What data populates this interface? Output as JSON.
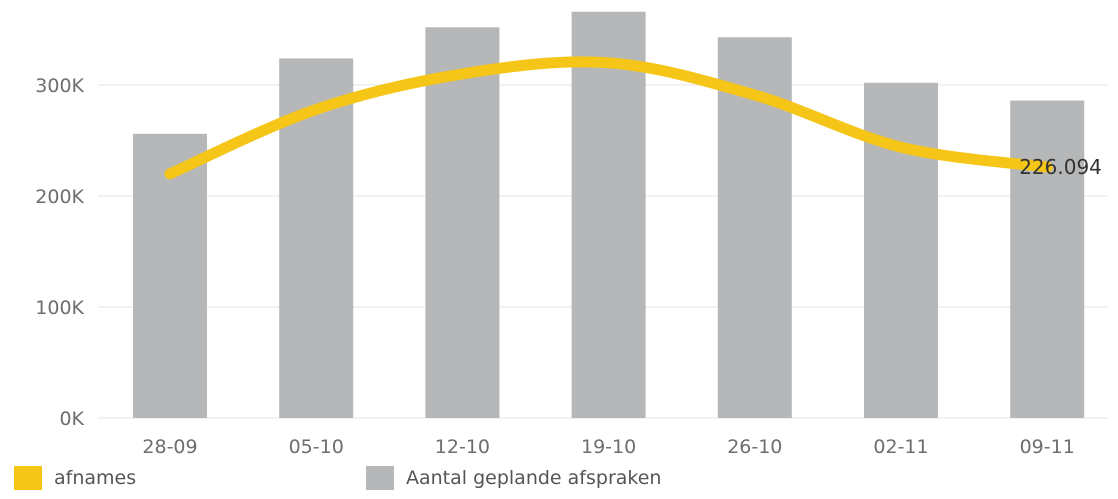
{
  "chart_data": {
    "type": "bar",
    "categories": [
      "28-09",
      "05-10",
      "12-10",
      "19-10",
      "26-10",
      "02-11",
      "09-11"
    ],
    "y_ticks": [
      "0K",
      "100K",
      "200K",
      "300K"
    ],
    "ylim": [
      0,
      370000
    ],
    "grid": true,
    "legend_position": "bottom-left",
    "series": [
      {
        "name": "Aantal geplande afspraken",
        "type": "bar",
        "color": "#b5b7b8",
        "values": [
          256000,
          324000,
          352000,
          366000,
          343000,
          302000,
          286000
        ]
      },
      {
        "name": "afnames",
        "type": "line",
        "color": "#f5c518",
        "values": [
          220000,
          278000,
          310000,
          320000,
          291000,
          244000,
          226094
        ]
      }
    ],
    "data_labels": [
      {
        "series": "afnames",
        "category": "09-11",
        "text": "226.094"
      }
    ]
  }
}
